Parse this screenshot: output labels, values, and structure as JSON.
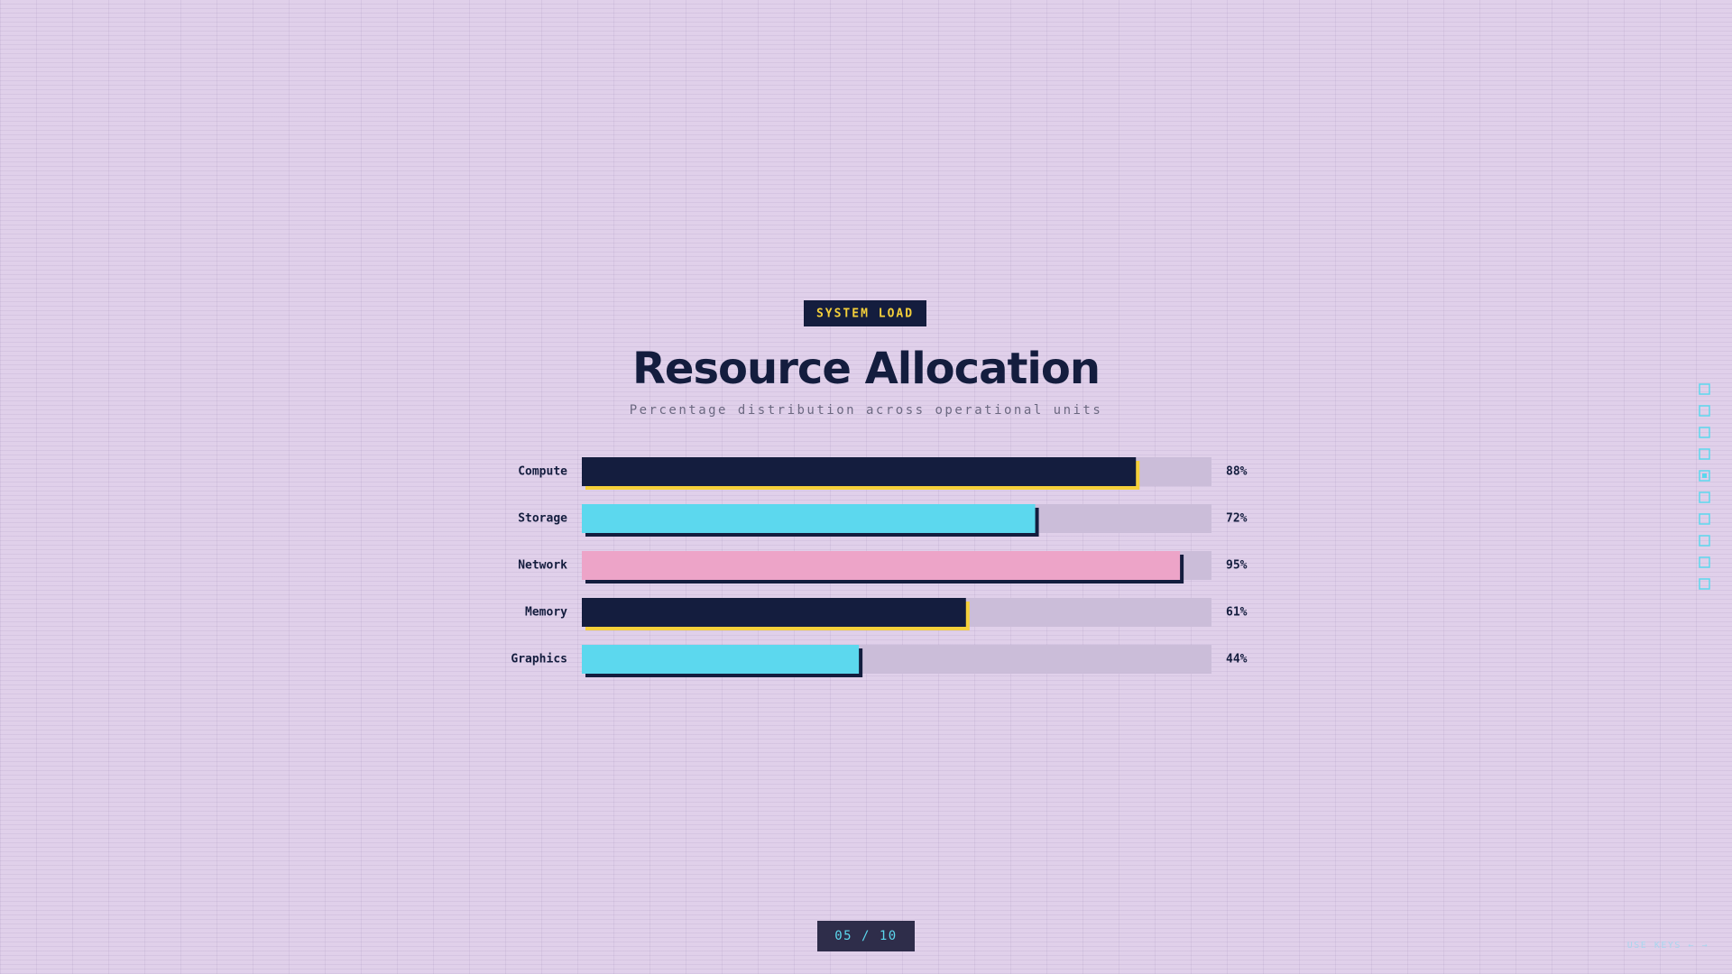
{
  "tag": "SYSTEM LOAD",
  "chart_data": {
    "type": "bar",
    "title": "Resource Allocation",
    "subtitle": "Percentage distribution across operational units",
    "categories": [
      "Compute",
      "Storage",
      "Network",
      "Memory",
      "Graphics"
    ],
    "values": [
      88,
      72,
      95,
      61,
      44
    ],
    "value_labels": [
      "88%",
      "72%",
      "95%",
      "61%",
      "44%"
    ],
    "colors": [
      "#141d3e",
      "#5cd8ee",
      "#eda4c8",
      "#141d3e",
      "#5cd8ee"
    ],
    "shadow_colors": [
      "#f5d03a",
      "#141d3e",
      "#141d3e",
      "#f5d03a",
      "#141d3e"
    ],
    "track_color": "#cbbdd9",
    "xlim": [
      0,
      100
    ]
  },
  "pagination": "05 / 10",
  "hint": "USE KEYS ← →"
}
